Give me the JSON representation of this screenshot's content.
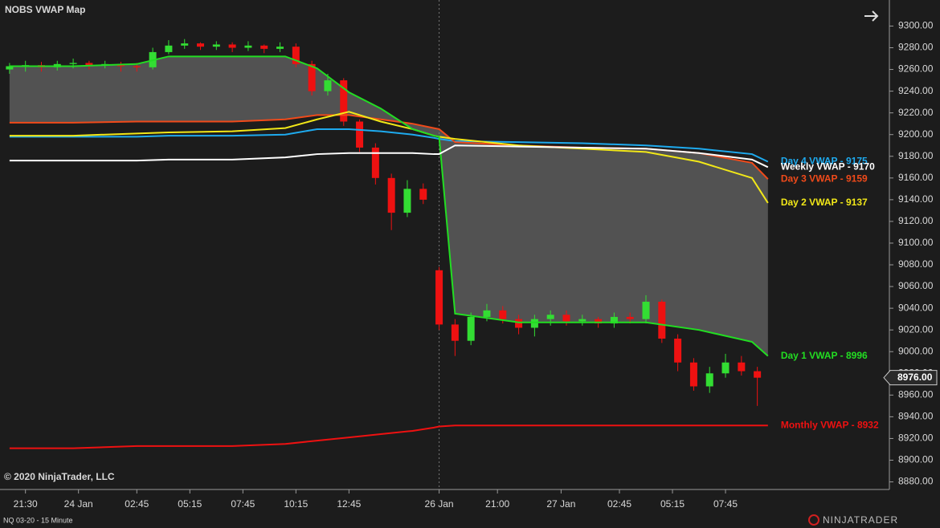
{
  "chart_data": {
    "type": "candlestick",
    "title": "NOBS VWAP Map",
    "xlim": [
      -1.8,
      165.9
    ],
    "xticks": [
      {
        "value": 3,
        "label": "21:30"
      },
      {
        "value": 13,
        "label": "24 Jan"
      },
      {
        "value": 24,
        "label": "02:45"
      },
      {
        "value": 34,
        "label": "05:15"
      },
      {
        "value": 44,
        "label": "07:45"
      },
      {
        "value": 54,
        "label": "10:15"
      },
      {
        "value": 64,
        "label": "12:45"
      },
      {
        "value": 81,
        "label": "26 Jan"
      },
      {
        "value": 92,
        "label": "21:00"
      },
      {
        "value": 104,
        "label": "27 Jan"
      },
      {
        "value": 115,
        "label": "02:45"
      },
      {
        "value": 125,
        "label": "05:15"
      },
      {
        "value": 135,
        "label": "07:45"
      }
    ],
    "session_break": 81,
    "ylim": [
      8873,
      9324
    ],
    "yticks": [
      {
        "value": 8880,
        "label": "8880.00"
      },
      {
        "value": 8900,
        "label": "8900.00"
      },
      {
        "value": 8920,
        "label": "8920.00"
      },
      {
        "value": 8940,
        "label": "8940.00"
      },
      {
        "value": 8960,
        "label": "8960.00"
      },
      {
        "value": 8980,
        "label": "8980.00"
      },
      {
        "value": 9000,
        "label": "9000.00"
      },
      {
        "value": 9020,
        "label": "9020.00"
      },
      {
        "value": 9040,
        "label": "9040.00"
      },
      {
        "value": 9060,
        "label": "9060.00"
      },
      {
        "value": 9080,
        "label": "9080.00"
      },
      {
        "value": 9100,
        "label": "9100.00"
      },
      {
        "value": 9120,
        "label": "9120.00"
      },
      {
        "value": 9140,
        "label": "9140.00"
      },
      {
        "value": 9160,
        "label": "9160.00"
      },
      {
        "value": 9180,
        "label": "9180.00"
      },
      {
        "value": 9200,
        "label": "9200.00"
      },
      {
        "value": 9220,
        "label": "9220.00"
      },
      {
        "value": 9240,
        "label": "9240.00"
      },
      {
        "value": 9260,
        "label": "9260.00"
      },
      {
        "value": 9280,
        "label": "9280.00"
      },
      {
        "value": 9300,
        "label": "9300.00"
      }
    ],
    "candles": {
      "up_color": "#33dd33",
      "down_color": "#ee1111",
      "x": [
        0,
        3,
        6,
        9,
        12,
        15,
        18,
        21,
        24,
        27,
        30,
        33,
        36,
        39,
        42,
        45,
        48,
        51,
        54,
        57,
        60,
        63,
        66,
        69,
        72,
        75,
        78,
        81,
        84,
        87,
        90,
        93,
        96,
        99,
        102,
        105,
        108,
        111,
        114,
        117,
        120,
        123,
        126,
        129,
        132,
        135,
        138,
        141
      ],
      "open": [
        9260,
        9263,
        9264,
        9262,
        9265,
        9266,
        9264,
        9265,
        9263,
        9262,
        9276,
        9282,
        9284,
        9281,
        9283,
        9280,
        9282,
        9279,
        9281,
        9265,
        9240,
        9250,
        9212,
        9188,
        9160,
        9128,
        9150,
        9075,
        9025,
        9010,
        9032,
        9038,
        9030,
        9022,
        9030,
        9034,
        9028,
        9030,
        9026,
        9032,
        9030,
        9046,
        9012,
        8990,
        8968,
        8980,
        8990,
        8982
      ],
      "high": [
        9266,
        9268,
        9267,
        9268,
        9270,
        9268,
        9268,
        9267,
        9266,
        9280,
        9287,
        9288,
        9285,
        9286,
        9285,
        9286,
        9283,
        9285,
        9284,
        9268,
        9256,
        9252,
        9214,
        9192,
        9164,
        9158,
        9155,
        9078,
        9030,
        9036,
        9044,
        9042,
        9034,
        9034,
        9038,
        9038,
        9034,
        9032,
        9036,
        9036,
        9052,
        9048,
        9016,
        8994,
        8986,
        8998,
        8996,
        8986
      ],
      "low": [
        9256,
        9258,
        9258,
        9259,
        9261,
        9260,
        9261,
        9258,
        9258,
        9260,
        9274,
        9279,
        9278,
        9278,
        9276,
        9277,
        9275,
        9276,
        9262,
        9236,
        9236,
        9208,
        9184,
        9154,
        9112,
        9124,
        9136,
        9020,
        8996,
        9006,
        9028,
        9026,
        9016,
        9014,
        9024,
        9024,
        9024,
        9022,
        9022,
        9026,
        9026,
        9008,
        8982,
        8964,
        8962,
        8976,
        8978,
        8950
      ],
      "close": [
        9263,
        9264,
        9262,
        9265,
        9266,
        9264,
        9265,
        9263,
        9262,
        9276,
        9282,
        9284,
        9281,
        9283,
        9280,
        9282,
        9279,
        9281,
        9265,
        9240,
        9250,
        9212,
        9188,
        9160,
        9128,
        9150,
        9140,
        9025,
        9010,
        9032,
        9038,
        9030,
        9022,
        9030,
        9034,
        9028,
        9030,
        9026,
        9032,
        9030,
        9046,
        9012,
        8990,
        8968,
        8980,
        8990,
        8982,
        8976
      ]
    },
    "lines": {
      "x": [
        0,
        12,
        24,
        30,
        42,
        52,
        58,
        64,
        70,
        76,
        80,
        81,
        84,
        96,
        108,
        120,
        130,
        140,
        143
      ],
      "fill_between": [
        4,
        2
      ],
      "series": [
        {
          "name": "Monthly VWAP - 8932",
          "color": "#ee1111",
          "values": [
            8911,
            8911,
            8913,
            8913,
            8913,
            8915,
            8918,
            8921,
            8924,
            8927,
            8930,
            8931,
            8932,
            8932,
            8932,
            8932,
            8932,
            8932,
            8932
          ]
        },
        {
          "name": "Day 4 VWAP - 9175",
          "color": "#1eaaee",
          "values": [
            9198,
            9198,
            9198,
            9199,
            9199,
            9200,
            9205,
            9205,
            9203,
            9200,
            9197,
            9196,
            9194,
            9193,
            9192,
            9190,
            9187,
            9182,
            9175
          ]
        },
        {
          "name": "Day 3 VWAP - 9159",
          "color": "#f04a1a",
          "values": [
            9211,
            9211,
            9212,
            9212,
            9212,
            9214,
            9218,
            9218,
            9214,
            9210,
            9206,
            9205,
            9193,
            9190,
            9188,
            9187,
            9183,
            9174,
            9159
          ]
        },
        {
          "name": "Day 2 VWAP - 9137",
          "color": "#f2e818",
          "values": [
            9199,
            9199,
            9201,
            9202,
            9203,
            9206,
            9214,
            9221,
            9212,
            9205,
            9199,
            9198,
            9196,
            9190,
            9187,
            9184,
            9175,
            9160,
            9137
          ]
        },
        {
          "name": "Day 1 VWAP - 8996",
          "color": "#22dd22",
          "values": [
            9263,
            9263,
            9265,
            9272,
            9272,
            9272,
            9261,
            9239,
            9224,
            9205,
            9199,
            9198,
            9035,
            9027,
            9027,
            9027,
            9020,
            9009,
            8996
          ]
        },
        {
          "name": "Weekly VWAP - 9170",
          "color": "#ffffff",
          "values": [
            9176,
            9176,
            9176,
            9177,
            9177,
            9179,
            9182,
            9183,
            9183,
            9183,
            9182,
            9182,
            9190,
            9189,
            9188,
            9187,
            9183,
            9177,
            9170
          ]
        }
      ]
    },
    "last_price": {
      "value": 8976,
      "label": "8976.00"
    }
  },
  "ui": {
    "copyright": "© 2020 NinjaTrader, LLC",
    "instrument": "NQ 03-20 - 15 Minute",
    "brand": "NINJATRADER"
  }
}
